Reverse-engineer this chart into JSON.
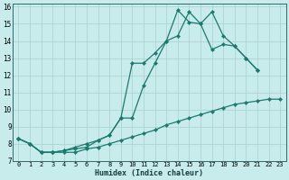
{
  "xlabel": "Humidex (Indice chaleur)",
  "background_color": "#c8ecec",
  "grid_color": "#aed4d4",
  "line_color": "#1a7a6e",
  "xlim": [
    -0.5,
    23.5
  ],
  "ylim": [
    7,
    16.2
  ],
  "xticks": [
    0,
    1,
    2,
    3,
    4,
    5,
    6,
    7,
    8,
    9,
    10,
    11,
    12,
    13,
    14,
    15,
    16,
    17,
    18,
    19,
    20,
    21,
    22,
    23
  ],
  "yticks": [
    7,
    8,
    9,
    10,
    11,
    12,
    13,
    14,
    15,
    16
  ],
  "line1_x": [
    0,
    1,
    2,
    3,
    4,
    5,
    6,
    7,
    8,
    9,
    10,
    11,
    12,
    13,
    14,
    15,
    16,
    17,
    18,
    19,
    20,
    21
  ],
  "line1_y": [
    8.3,
    8.0,
    7.5,
    7.5,
    7.6,
    7.7,
    7.8,
    8.2,
    8.5,
    9.5,
    12.7,
    12.7,
    13.3,
    14.0,
    15.8,
    15.1,
    15.0,
    13.5,
    13.8,
    13.7,
    13.0,
    12.3
  ],
  "line2_x": [
    0,
    1,
    2,
    3,
    4,
    5,
    6,
    7,
    8,
    9,
    10,
    11,
    12,
    13,
    14,
    15,
    16,
    17,
    18,
    19,
    20,
    21
  ],
  "line2_y": [
    8.3,
    8.0,
    7.5,
    7.5,
    7.6,
    7.8,
    8.0,
    8.2,
    8.5,
    9.5,
    9.5,
    11.4,
    12.7,
    14.0,
    14.3,
    15.7,
    15.0,
    15.7,
    14.3,
    13.7,
    13.0,
    12.3
  ],
  "line3_x": [
    0,
    1,
    2,
    3,
    4,
    5,
    6,
    7,
    8,
    9,
    10,
    11,
    12,
    13,
    14,
    15,
    16,
    17,
    18,
    19,
    20,
    21,
    22,
    23
  ],
  "line3_y": [
    8.3,
    8.0,
    7.5,
    7.5,
    7.5,
    7.5,
    7.7,
    7.8,
    8.0,
    8.2,
    8.4,
    8.6,
    8.8,
    9.1,
    9.3,
    9.5,
    9.7,
    9.9,
    10.1,
    10.3,
    10.4,
    10.5,
    10.6,
    10.6
  ]
}
